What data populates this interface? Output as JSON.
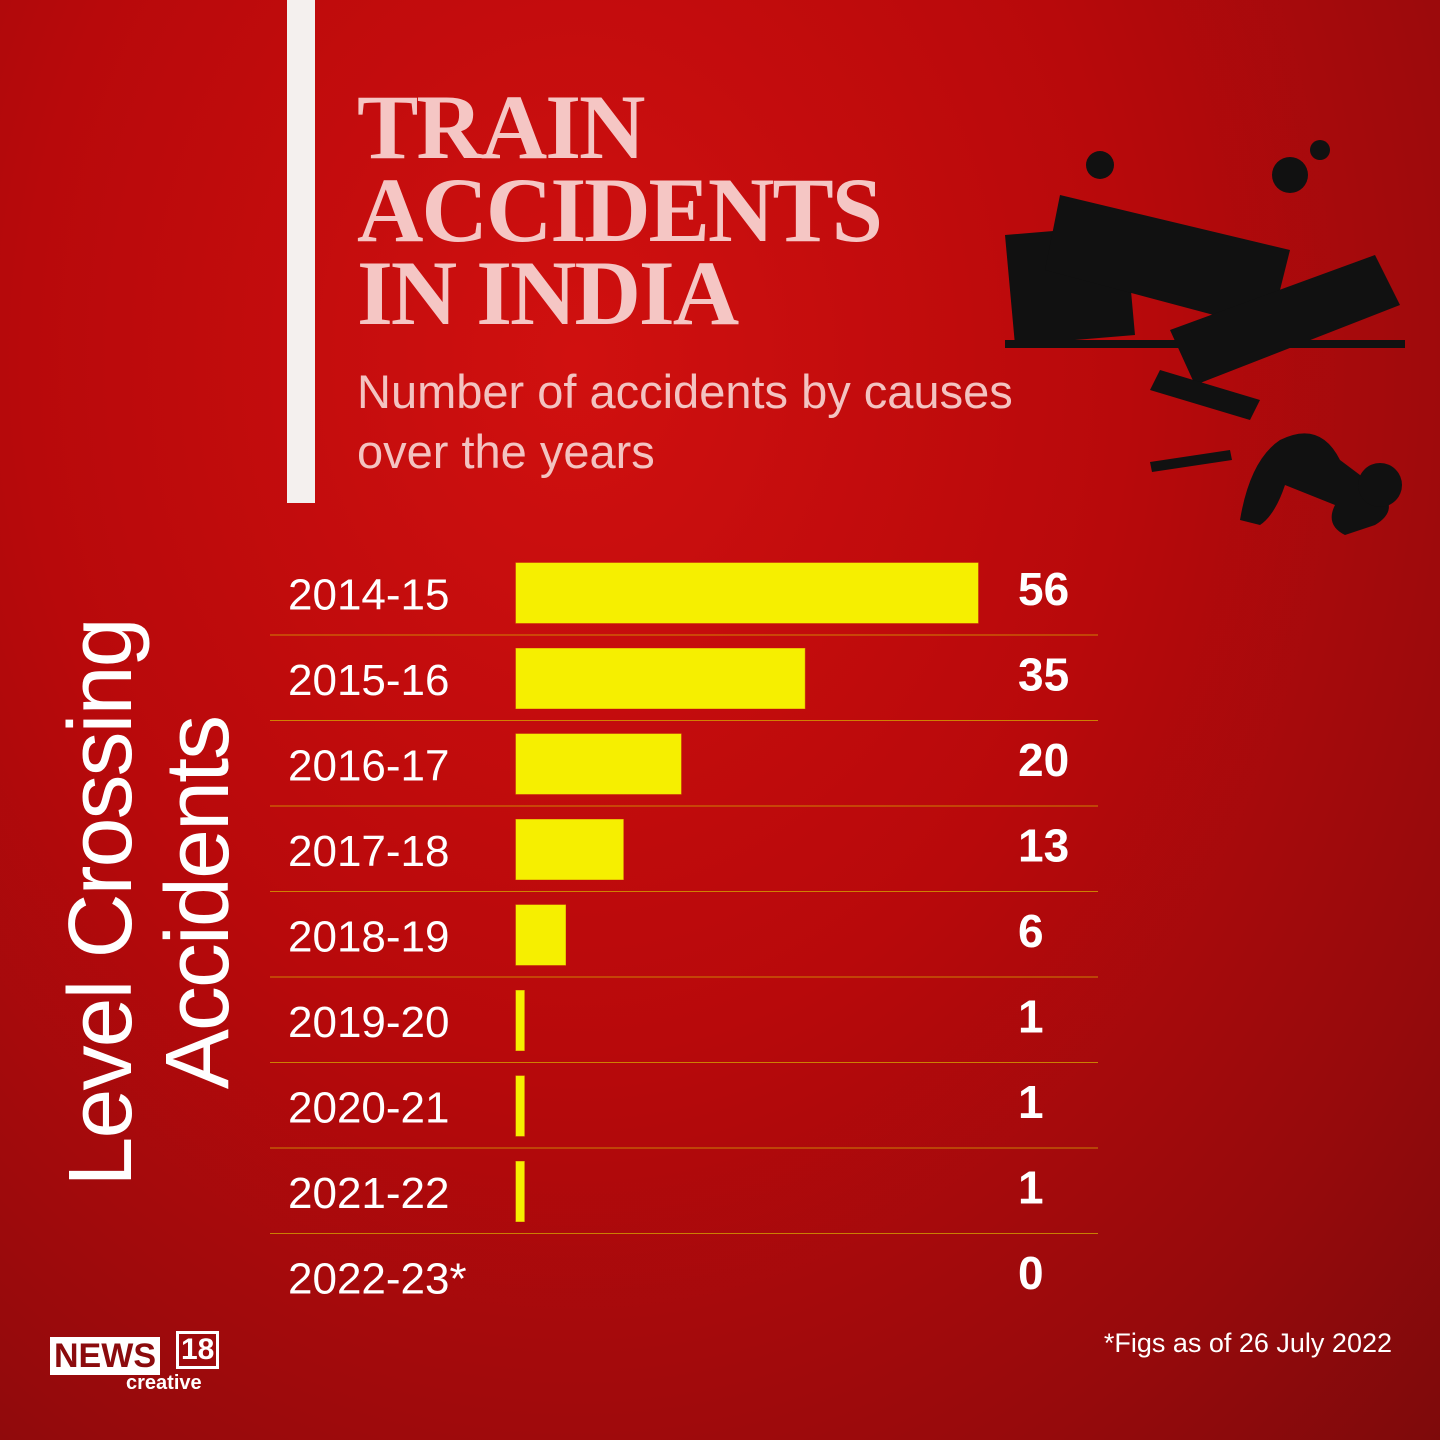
{
  "chart_data": {
    "type": "bar",
    "orientation": "horizontal",
    "title": "TRAIN ACCIDENTS IN INDIA",
    "subtitle": "Number of accidents by causes over the years",
    "side_label": "Level Crossing Accidents",
    "footnote": "*Figs as of 26 July 2022",
    "categories": [
      "2014-15",
      "2015-16",
      "2016-17",
      "2017-18",
      "2018-19",
      "2019-20",
      "2020-21",
      "2021-22",
      "2022-23*"
    ],
    "values": [
      56,
      35,
      20,
      13,
      6,
      1,
      1,
      1,
      0
    ],
    "color": "#f6ef00",
    "xlim": [
      0,
      56
    ]
  },
  "logo": {
    "main": "NEWS",
    "number": "18",
    "sub": "creative"
  }
}
